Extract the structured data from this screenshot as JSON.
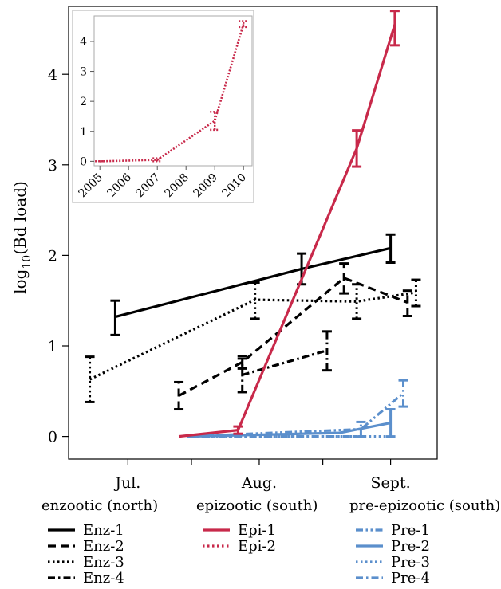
{
  "chart_data": [
    {
      "type": "line",
      "ylabel_main": "log",
      "ylabel_sub": "10",
      "ylabel_rest": "(Bd load)",
      "xlabel": "",
      "title": "",
      "x_ticks": [
        {
          "x": "2000-07-01",
          "label": "Jul."
        },
        {
          "x": "2000-07-16",
          "label": ""
        },
        {
          "x": "2000-08-01",
          "label": "Aug."
        },
        {
          "x": "2000-08-16",
          "label": ""
        },
        {
          "x": "2000-09-01",
          "label": "Sept."
        }
      ],
      "xlim": [
        "2000-06-17",
        "2000-09-12"
      ],
      "ylim": [
        -0.25,
        4.75
      ],
      "y_ticks": [
        0,
        1,
        2,
        3,
        4
      ],
      "grid": false,
      "groups": [
        {
          "title": "enzootic (north)",
          "color": "#000000",
          "series": [
            {
              "name": "Enz-1",
              "dash": "solid",
              "points": [
                {
                  "x": "2000-06-28",
                  "y": 1.32,
                  "lo": 1.12,
                  "hi": 1.5
                },
                {
                  "x": "2000-08-11",
                  "y": 1.85,
                  "lo": 1.68,
                  "hi": 2.02
                },
                {
                  "x": "2000-09-01",
                  "y": 2.08,
                  "lo": 1.92,
                  "hi": 2.23
                }
              ]
            },
            {
              "name": "Enz-2",
              "dash": "dash",
              "points": [
                {
                  "x": "2000-07-13",
                  "y": 0.45,
                  "lo": 0.3,
                  "hi": 0.6
                },
                {
                  "x": "2000-07-28",
                  "y": 0.82,
                  "lo": 0.75,
                  "hi": 0.89
                },
                {
                  "x": "2000-08-21",
                  "y": 1.75,
                  "lo": 1.58,
                  "hi": 1.91
                },
                {
                  "x": "2000-09-05",
                  "y": 1.48,
                  "lo": 1.33,
                  "hi": 1.61
                }
              ]
            },
            {
              "name": "Enz-3",
              "dash": "dot",
              "points": [
                {
                  "x": "2000-06-22",
                  "y": 0.63,
                  "lo": 0.38,
                  "hi": 0.88
                },
                {
                  "x": "2000-07-31",
                  "y": 1.51,
                  "lo": 1.3,
                  "hi": 1.7
                },
                {
                  "x": "2000-08-24",
                  "y": 1.49,
                  "lo": 1.3,
                  "hi": 1.68
                },
                {
                  "x": "2000-09-07",
                  "y": 1.59,
                  "lo": 1.44,
                  "hi": 1.73
                }
              ]
            },
            {
              "name": "Enz-4",
              "dash": "dashdot",
              "points": [
                {
                  "x": "2000-07-28",
                  "y": 0.68,
                  "lo": 0.49,
                  "hi": 0.86
                },
                {
                  "x": "2000-08-17",
                  "y": 0.95,
                  "lo": 0.73,
                  "hi": 1.16
                }
              ]
            }
          ]
        },
        {
          "title": "epizootic (south)",
          "color": "#c8294a",
          "series": [
            {
              "name": "Epi-1",
              "dash": "solid",
              "points": [
                {
                  "x": "2000-07-13",
                  "y": 0.0,
                  "lo": 0.0,
                  "hi": 0.0
                },
                {
                  "x": "2000-07-27",
                  "y": 0.07,
                  "lo": 0.03,
                  "hi": 0.11
                },
                {
                  "x": "2000-08-24",
                  "y": 3.18,
                  "lo": 2.98,
                  "hi": 3.38
                },
                {
                  "x": "2000-09-02",
                  "y": 4.55,
                  "lo": 4.32,
                  "hi": 4.7
                }
              ]
            },
            {
              "name": "Epi-2",
              "dash": "dot",
              "points": []
            }
          ]
        },
        {
          "title": "pre-epizootic (south)",
          "color": "#5b8fcc",
          "series": [
            {
              "name": "Pre-1",
              "dash": "dashdotdot",
              "points": [
                {
                  "x": "2000-07-15",
                  "y": 0.0,
                  "lo": 0.0,
                  "hi": 0.0
                },
                {
                  "x": "2000-08-25",
                  "y": 0.08,
                  "lo": 0.0,
                  "hi": 0.16
                },
                {
                  "x": "2000-09-04",
                  "y": 0.48,
                  "lo": 0.33,
                  "hi": 0.62
                }
              ]
            },
            {
              "name": "Pre-2",
              "dash": "solid",
              "points": [
                {
                  "x": "2000-07-15",
                  "y": 0.0,
                  "lo": 0.0,
                  "hi": 0.0
                },
                {
                  "x": "2000-08-20",
                  "y": 0.04,
                  "lo": 0.0,
                  "hi": 0.0
                },
                {
                  "x": "2000-09-01",
                  "y": 0.15,
                  "lo": 0.0,
                  "hi": 0.3
                }
              ]
            },
            {
              "name": "Pre-3",
              "dash": "dot",
              "points": [
                {
                  "x": "2000-07-15",
                  "y": 0.0,
                  "lo": 0.0,
                  "hi": 0.0
                },
                {
                  "x": "2000-08-31",
                  "y": 0.0,
                  "lo": 0.0,
                  "hi": 0.0
                }
              ]
            },
            {
              "name": "Pre-4",
              "dash": "dashdot",
              "points": [
                {
                  "x": "2000-07-15",
                  "y": 0.0,
                  "lo": 0.0,
                  "hi": 0.0
                },
                {
                  "x": "2000-08-28",
                  "y": 0.0,
                  "lo": 0.0,
                  "hi": 0.0
                }
              ]
            }
          ]
        }
      ]
    },
    {
      "type": "line",
      "title": "",
      "x": [
        "2005",
        "2006",
        "2007",
        "2008",
        "2009",
        "2010"
      ],
      "xlim": [
        2004.8,
        2010.3
      ],
      "ylim": [
        -0.15,
        4.85
      ],
      "y_ticks": [
        0,
        1,
        2,
        3,
        4
      ],
      "grid": false,
      "series": [
        {
          "name": "Epi-2",
          "color": "#c8294a",
          "dash": "dot",
          "points": [
            {
              "x": 2005.0,
              "y": 0.0,
              "lo": 0.0,
              "hi": 0.0
            },
            {
              "x": 2007.0,
              "y": 0.05,
              "lo": 0.0,
              "hi": 0.1
            },
            {
              "x": 2009.0,
              "y": 1.35,
              "lo": 1.05,
              "hi": 1.65
            },
            {
              "x": 2010.0,
              "y": 4.58,
              "lo": 4.48,
              "hi": 4.68
            }
          ]
        }
      ]
    }
  ]
}
